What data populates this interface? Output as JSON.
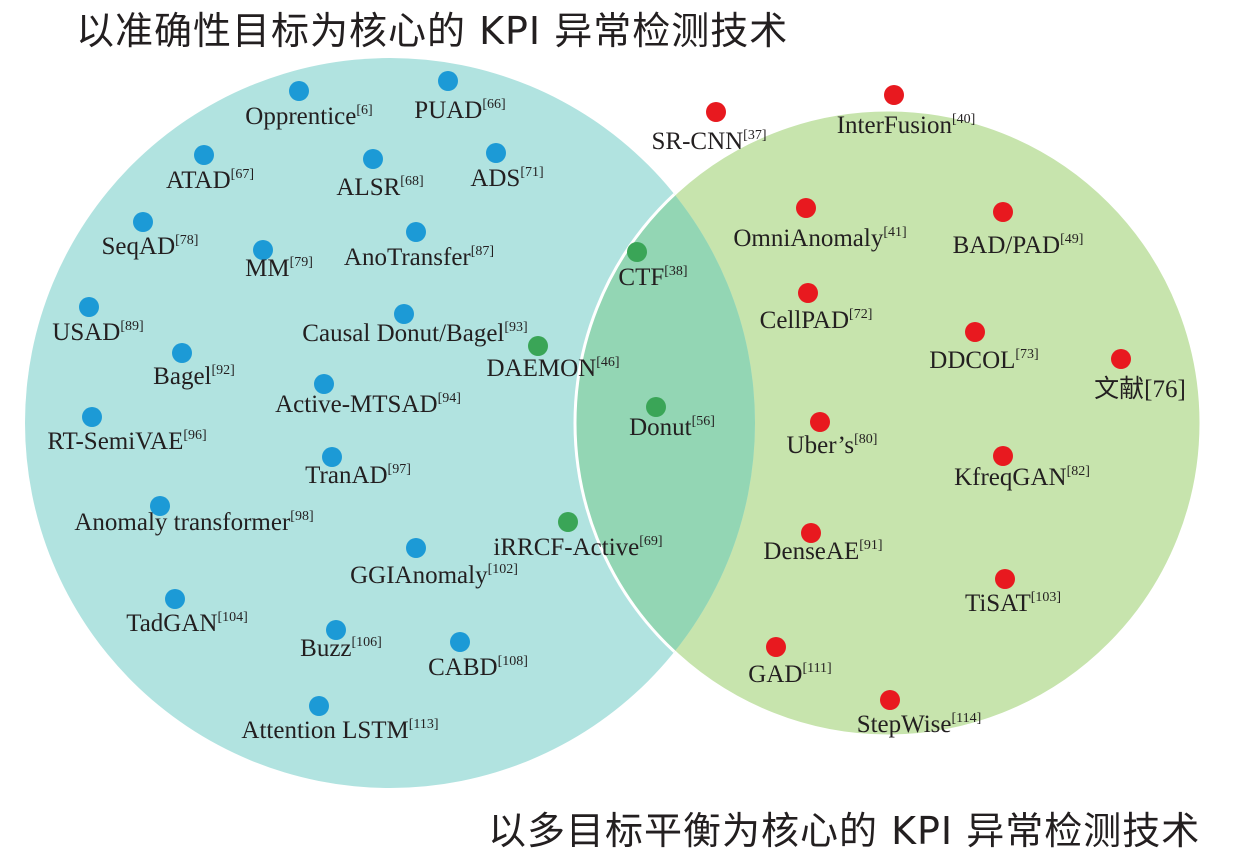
{
  "titles": {
    "top": "以准确性目标为核心的 KPI 异常检测技术",
    "bottom": "以多目标平衡为核心的 KPI 异常检测技术"
  },
  "colors": {
    "left_circle": "#b1e3e0",
    "right_circle": "#c7e4ad",
    "overlap": "#93d6b4",
    "blue_dot": "#1c9ad6",
    "green_dot": "#3aa557",
    "red_dot": "#e8191f"
  },
  "methods_accuracy": [
    {
      "name": "Opprentice",
      "ref": "[6]"
    },
    {
      "name": "PUAD",
      "ref": "[66]"
    },
    {
      "name": "ATAD",
      "ref": "[67]"
    },
    {
      "name": "ALSR",
      "ref": "[68]"
    },
    {
      "name": "ADS",
      "ref": "[71]"
    },
    {
      "name": "SeqAD",
      "ref": "[78]"
    },
    {
      "name": "MM",
      "ref": "[79]"
    },
    {
      "name": "AnoTransfer",
      "ref": "[87]"
    },
    {
      "name": "USAD",
      "ref": "[89]"
    },
    {
      "name": "Causal Donut/Bagel",
      "ref": "[93]"
    },
    {
      "name": "Bagel",
      "ref": "[92]"
    },
    {
      "name": "Active-MTSAD",
      "ref": "[94]"
    },
    {
      "name": "RT-SemiVAE",
      "ref": "[96]"
    },
    {
      "name": "TranAD",
      "ref": "[97]"
    },
    {
      "name": "Anomaly transformer",
      "ref": "[98]"
    },
    {
      "name": "GGIAnomaly",
      "ref": "[102]"
    },
    {
      "name": "TadGAN",
      "ref": "[104]"
    },
    {
      "name": "Buzz",
      "ref": "[106]"
    },
    {
      "name": "CABD",
      "ref": "[108]"
    },
    {
      "name": "Attention LSTM",
      "ref": "[113]"
    }
  ],
  "methods_both": [
    {
      "name": "CTF",
      "ref": "[38]"
    },
    {
      "name": "DAEMON",
      "ref": "[46]"
    },
    {
      "name": "Donut",
      "ref": "[56]"
    },
    {
      "name": "iRRCF-Active",
      "ref": "[69]"
    }
  ],
  "methods_multi": [
    {
      "name": "SR-CNN",
      "ref": "[37]"
    },
    {
      "name": "InterFusion",
      "ref": "[40]"
    },
    {
      "name": "OmniAnomaly",
      "ref": "[41]"
    },
    {
      "name": "BAD/PAD",
      "ref": "[49]"
    },
    {
      "name": "CellPAD",
      "ref": "[72]"
    },
    {
      "name": "DDCOL",
      "ref": "[73]"
    },
    {
      "name": "文献[76]",
      "ref": ""
    },
    {
      "name": "Uber’s",
      "ref": "[80]"
    },
    {
      "name": "KfreqGAN",
      "ref": "[82]"
    },
    {
      "name": "DenseAE",
      "ref": "[91]"
    },
    {
      "name": "TiSAT",
      "ref": "[103]"
    },
    {
      "name": "GAD",
      "ref": "[111]"
    },
    {
      "name": "StepWise",
      "ref": "[114]"
    }
  ]
}
